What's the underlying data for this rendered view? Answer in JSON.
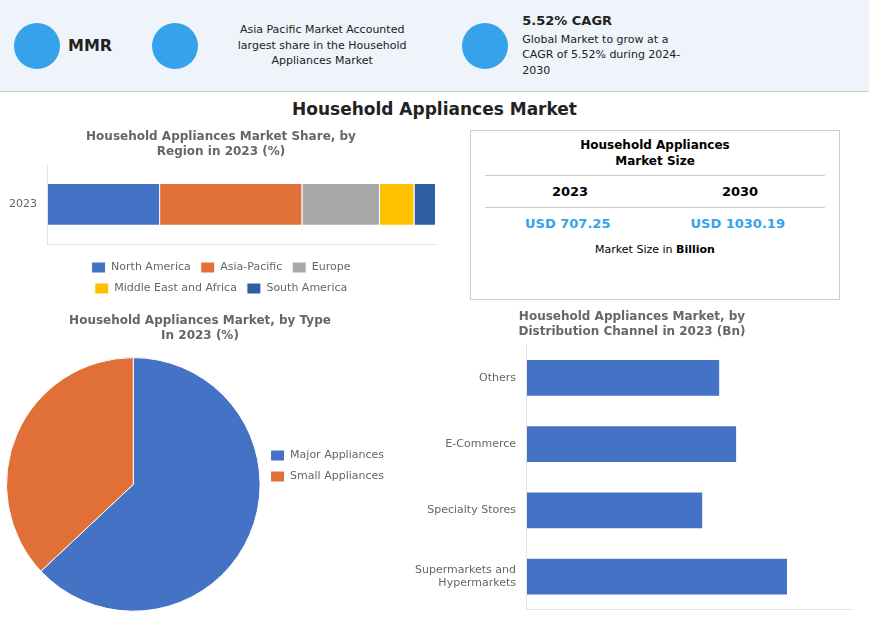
{
  "title": "Household Appliances Market",
  "annotations": [
    "MMR",
    "Asia Pacific Market Accounted\nlargest share in the Household\nAppliances Market",
    "5.52% CAGR",
    "Global Market to grow at a\nCAGR of 5.52% during 2024-\n2030",
    "Household Appliances\nMarket Size",
    "2023",
    "2030",
    "USD 707.25",
    "USD 1030.19",
    "Market Size in",
    "Billion"
  ],
  "chart_data": [
    {
      "type": "bar",
      "orientation": "horizontal",
      "stacked": true,
      "title": "Household Appliances Market Share, by\nRegion in 2023 (%)",
      "categories": [
        "2023"
      ],
      "series": [
        {
          "name": "North America",
          "color": "#4472C4",
          "values": [
            26
          ]
        },
        {
          "name": "Asia-Pacific",
          "color": "#E07038",
          "values": [
            33
          ]
        },
        {
          "name": "Europe",
          "color": "#A9A9A9",
          "values": [
            18
          ]
        },
        {
          "name": "Middle East and Africa",
          "color": "#FFC000",
          "values": [
            8
          ]
        },
        {
          "name": "South America",
          "color": "#2E5FA3",
          "values": [
            5
          ]
        }
      ],
      "xlim": [
        0,
        90
      ],
      "tick_labels": "y",
      "grid": false,
      "legend": "bottom"
    },
    {
      "type": "pie",
      "title": "Household Appliances Market, by Type\nIn 2023 (%)",
      "categories": [
        "Major Appliances",
        "Small Appliances"
      ],
      "values": [
        63,
        37
      ],
      "colors": [
        "#4472C4",
        "#E07038"
      ],
      "legend": "right"
    },
    {
      "type": "bar",
      "orientation": "horizontal",
      "title": "Household Appliances Market, by\nDistribution Channel in 2023 (Bn)",
      "categories": [
        "Supermarkets and\nHypermarkets",
        "Specialty Stores",
        "E-Commerce",
        "Others"
      ],
      "values": [
        230,
        155,
        185,
        170
      ],
      "color": "#4472C4",
      "xlim": [
        0,
        287.5
      ],
      "tick_labels": "y",
      "grid": false
    }
  ]
}
